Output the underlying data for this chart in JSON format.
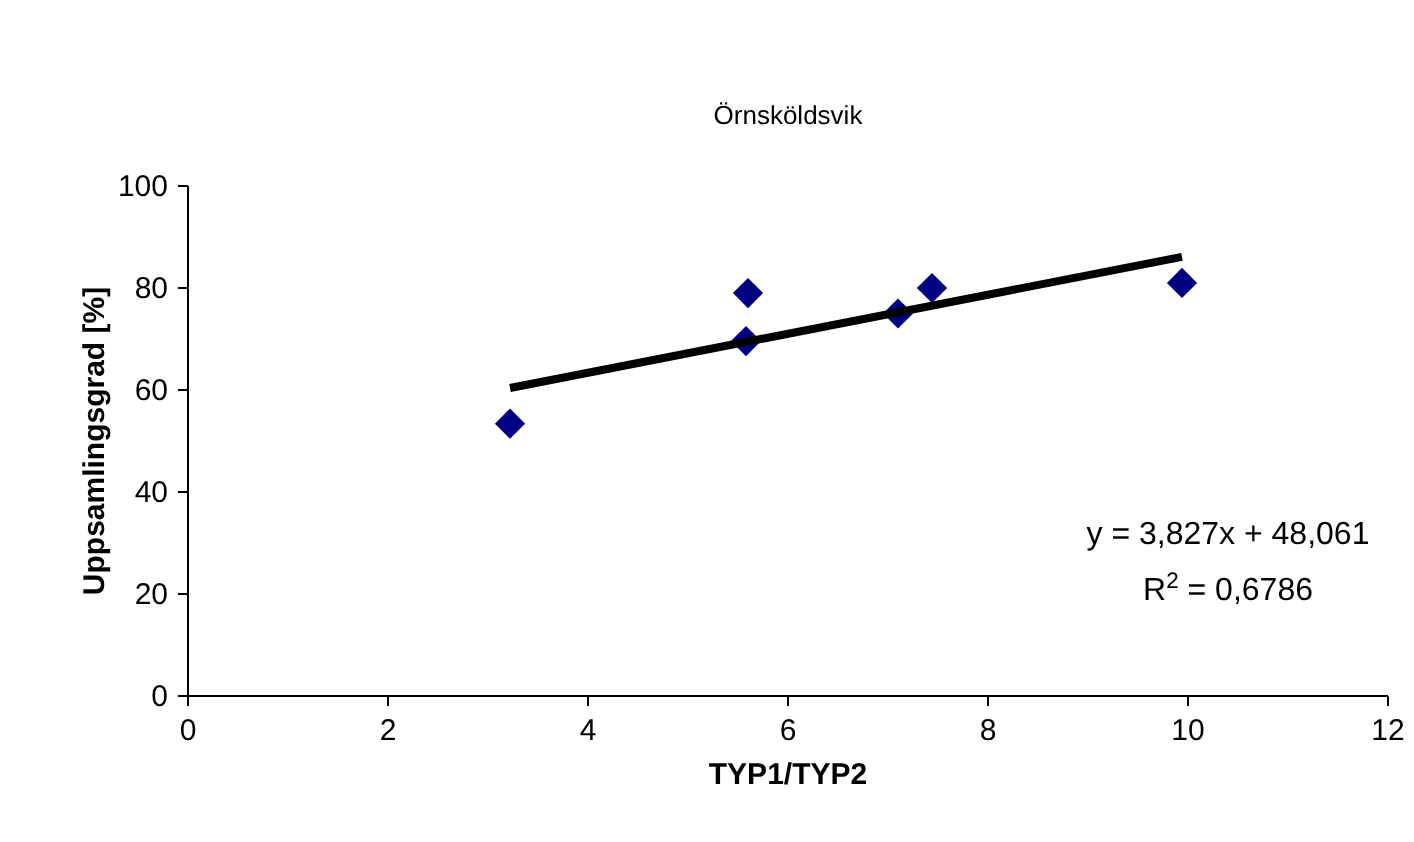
{
  "chart_data": {
    "type": "scatter",
    "title": "Örnsköldsvik",
    "xlabel": "TYP1/TYP2",
    "ylabel": "Uppsamlingsgrad [%]",
    "xlim": [
      0,
      12
    ],
    "xticks": [
      0,
      2,
      4,
      6,
      8,
      10,
      12
    ],
    "ylim": [
      0,
      100
    ],
    "yticks": [
      0,
      20,
      40,
      60,
      80,
      100
    ],
    "grid": false,
    "series": [
      {
        "color": "#000080",
        "marker": "diamond",
        "x": [
          3.22,
          5.6,
          5.58,
          7.1,
          7.44,
          9.94
        ],
        "values": [
          53.4,
          79,
          69.6,
          75,
          80,
          81
        ]
      },
      {
        "type": "line",
        "marker": "none",
        "color": "#000000",
        "x": [
          3.22,
          9.94
        ],
        "values": [
          60.4,
          86.1
        ]
      }
    ],
    "annotations": [
      "y = 3,827x + 48,061",
      "R$^{2}$ = 0,6786"
    ]
  }
}
